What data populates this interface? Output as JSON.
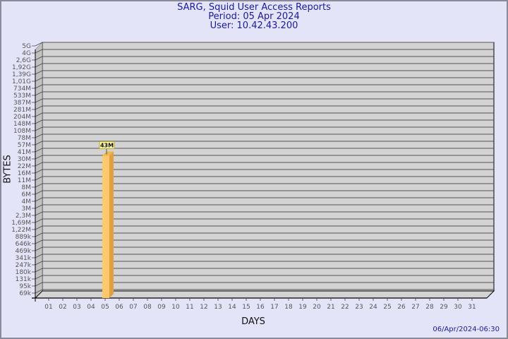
{
  "chart_data": {
    "type": "bar",
    "title": "SARG, Squid User Access Reports",
    "subtitle_period": "Period: 05 Apr 2024",
    "subtitle_user": "User: 10.42.43.200",
    "xlabel": "DAYS",
    "ylabel": "BYTES",
    "y_scale": "log",
    "y_tick_labels": [
      "5G",
      "4G",
      "2,6G",
      "1,92G",
      "1,39G",
      "1,01G",
      "734M",
      "533M",
      "387M",
      "281M",
      "204M",
      "148M",
      "108M",
      "78M",
      "57M",
      "41M",
      "30M",
      "22M",
      "16M",
      "11M",
      "8M",
      "6M",
      "4M",
      "3M",
      "2,3M",
      "1,69M",
      "1,22M",
      "889k",
      "646k",
      "469k",
      "341k",
      "247k",
      "180k",
      "131k",
      "95k",
      "69k"
    ],
    "categories": [
      "01",
      "02",
      "03",
      "04",
      "05",
      "06",
      "07",
      "08",
      "09",
      "10",
      "11",
      "12",
      "13",
      "14",
      "15",
      "16",
      "17",
      "18",
      "19",
      "20",
      "21",
      "22",
      "23",
      "24",
      "25",
      "26",
      "27",
      "28",
      "29",
      "30",
      "31"
    ],
    "series": [
      {
        "values": {
          "05": "43M"
        }
      }
    ],
    "data_labels": [
      {
        "category": "05",
        "label": "43M"
      }
    ],
    "grid": true,
    "three_d": true,
    "colors": {
      "bar_front": "#fec86c",
      "bar_side": "#e0a040",
      "plot_back": "#d3d3d3",
      "wall": "#c0c0c0",
      "grid": "#555555",
      "title": "#1a1a9a",
      "background": "#e4e4f8"
    }
  },
  "footer": {
    "timestamp": "06/Apr/2024-06:30"
  }
}
